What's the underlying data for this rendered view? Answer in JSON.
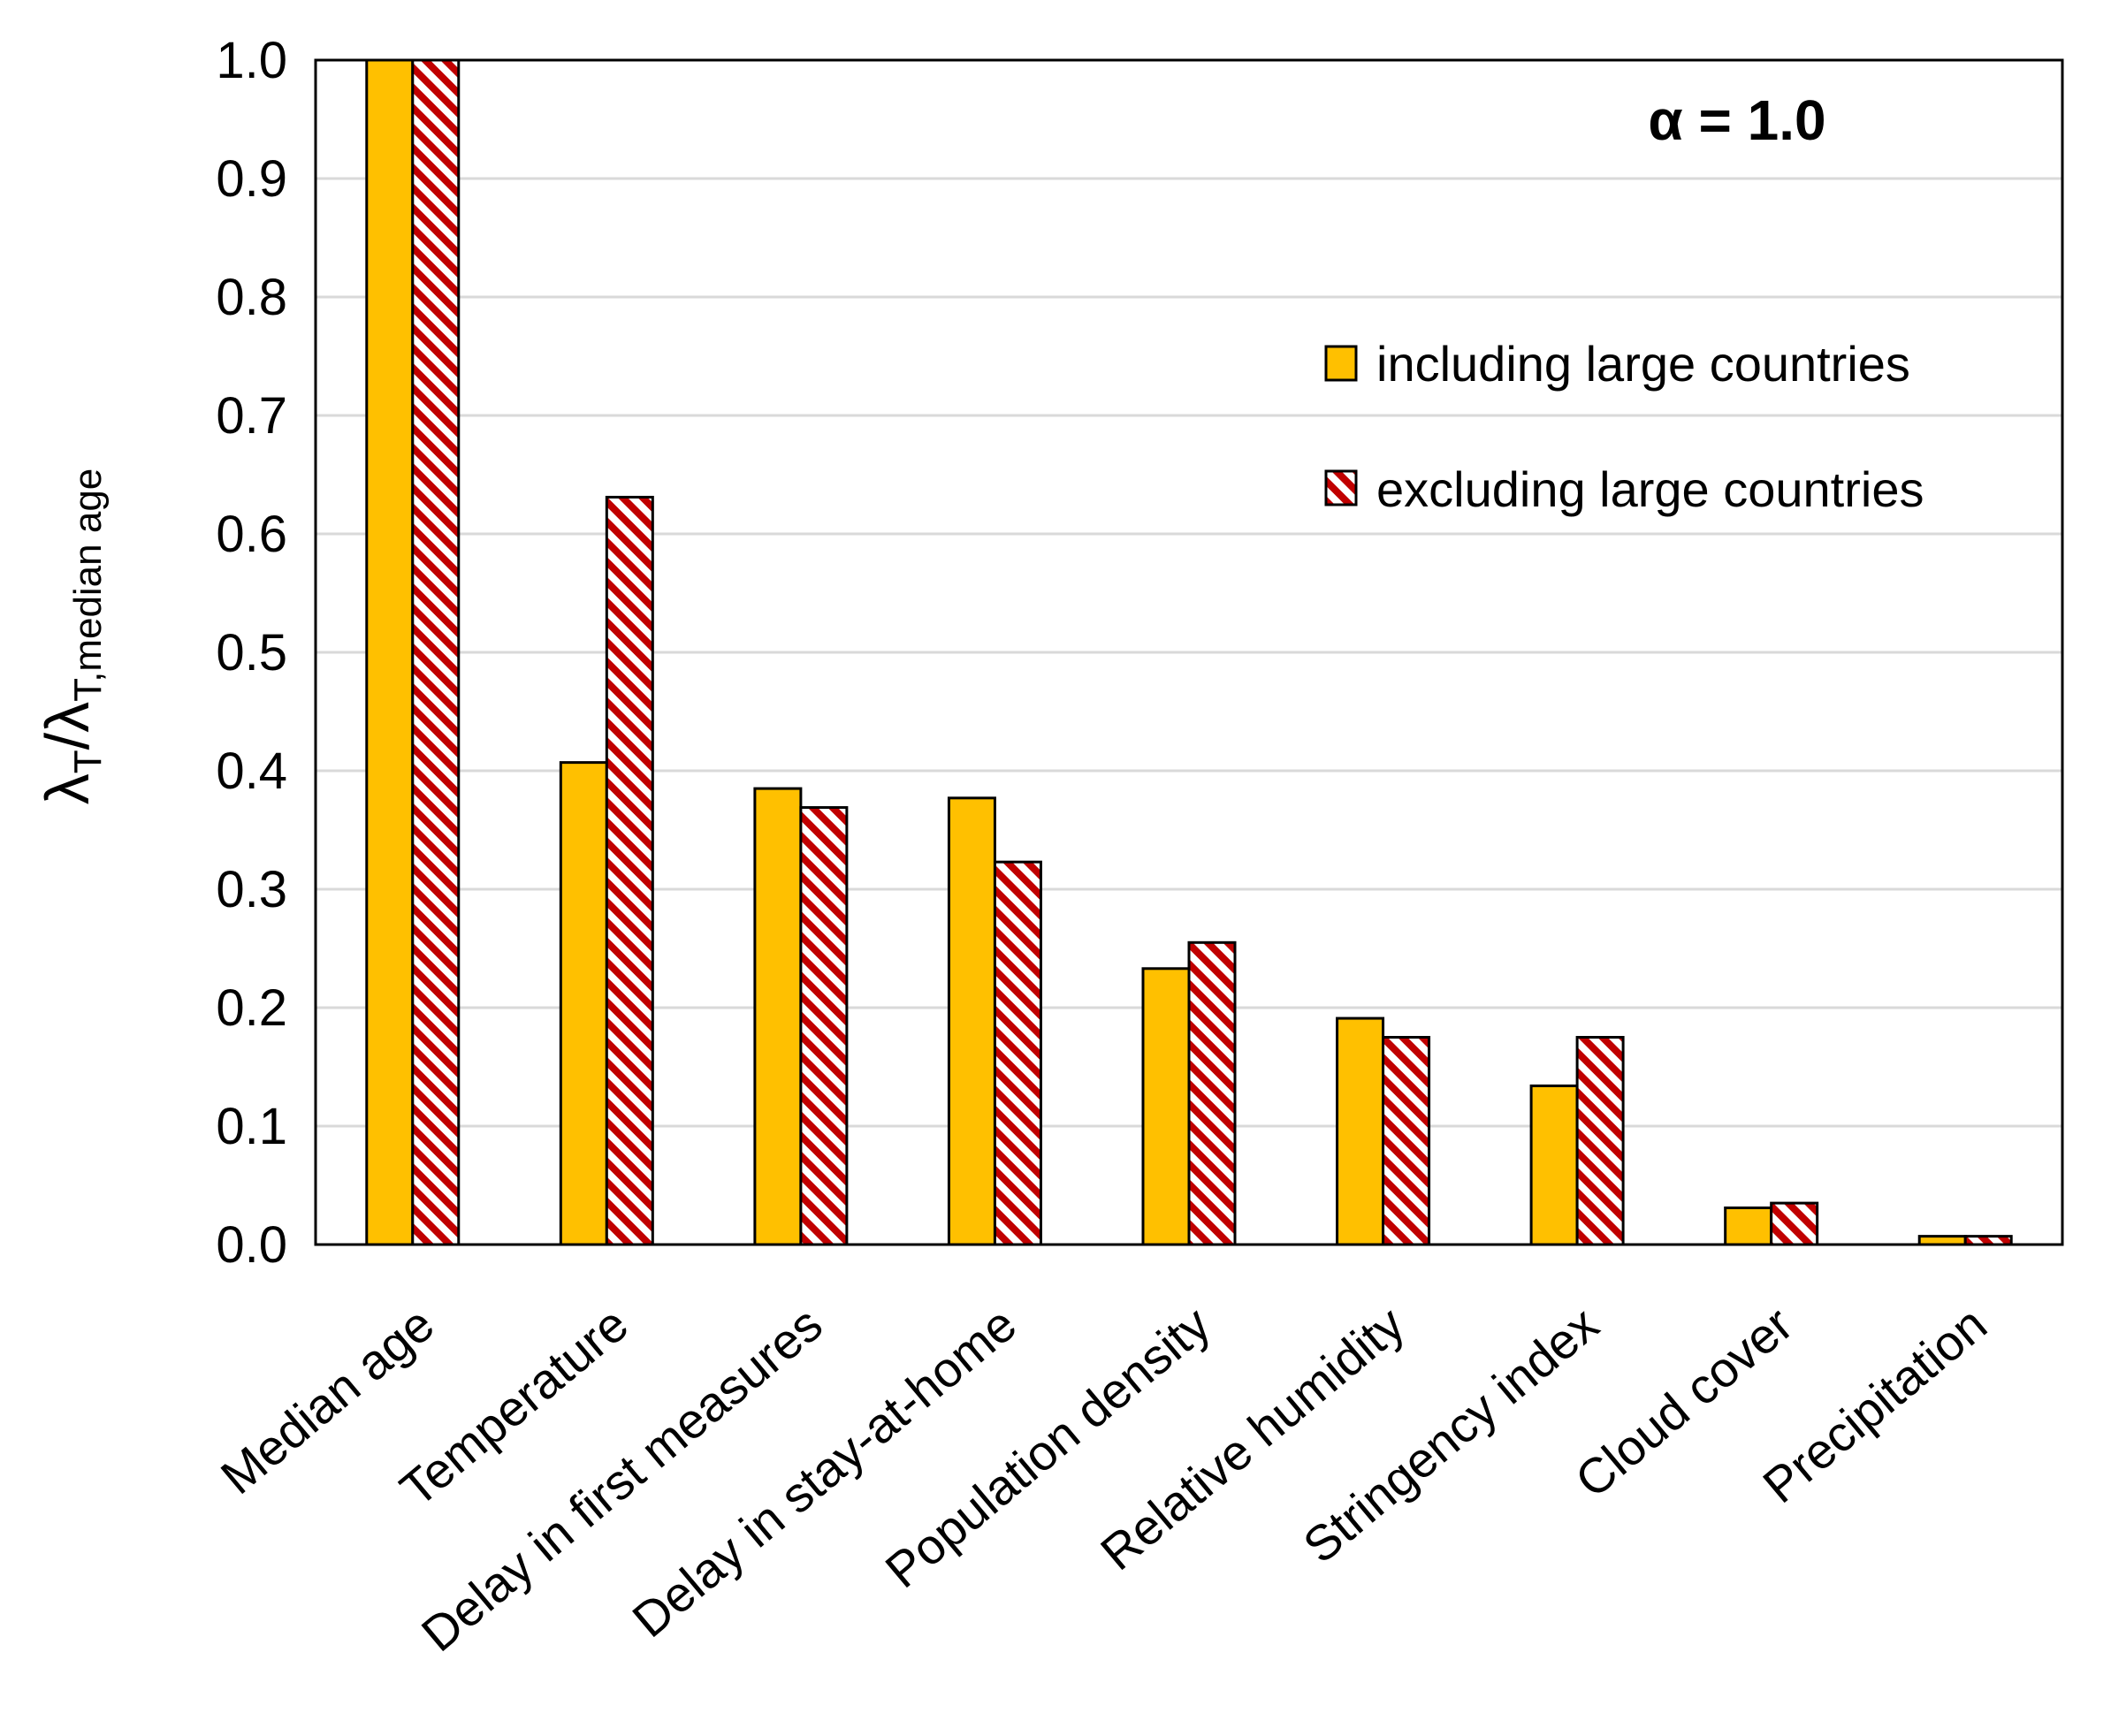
{
  "chart_data": {
    "type": "bar",
    "title": "",
    "annotation": "α = 1.0",
    "ylabel": {
      "main": "λ",
      "sub1": "T",
      "sep": "/λ",
      "sub2": "T,median age"
    },
    "xlabel": "",
    "ylim": [
      0,
      1.0
    ],
    "yticks": [
      "0.0",
      "0.1",
      "0.2",
      "0.3",
      "0.4",
      "0.5",
      "0.6",
      "0.7",
      "0.8",
      "0.9",
      "1.0"
    ],
    "grid": true,
    "legend_position": "top-right",
    "categories": [
      "Median age",
      "Temperature",
      "Delay in first measures",
      "Delay in stay-at-home",
      "Population density",
      "Relative humidity",
      "Stringency index",
      "Cloud cover",
      "Precipitation"
    ],
    "series": [
      {
        "name": "including large countries",
        "color": "#FFC000",
        "pattern": "solid",
        "values": [
          1.0,
          0.407,
          0.385,
          0.377,
          0.233,
          0.191,
          0.134,
          0.031,
          0.007
        ]
      },
      {
        "name": "excluding large countries",
        "color": "#C00000",
        "pattern": "diagonal-hatch",
        "values": [
          1.0,
          0.631,
          0.369,
          0.323,
          0.255,
          0.175,
          0.175,
          0.035,
          0.007
        ]
      }
    ]
  }
}
